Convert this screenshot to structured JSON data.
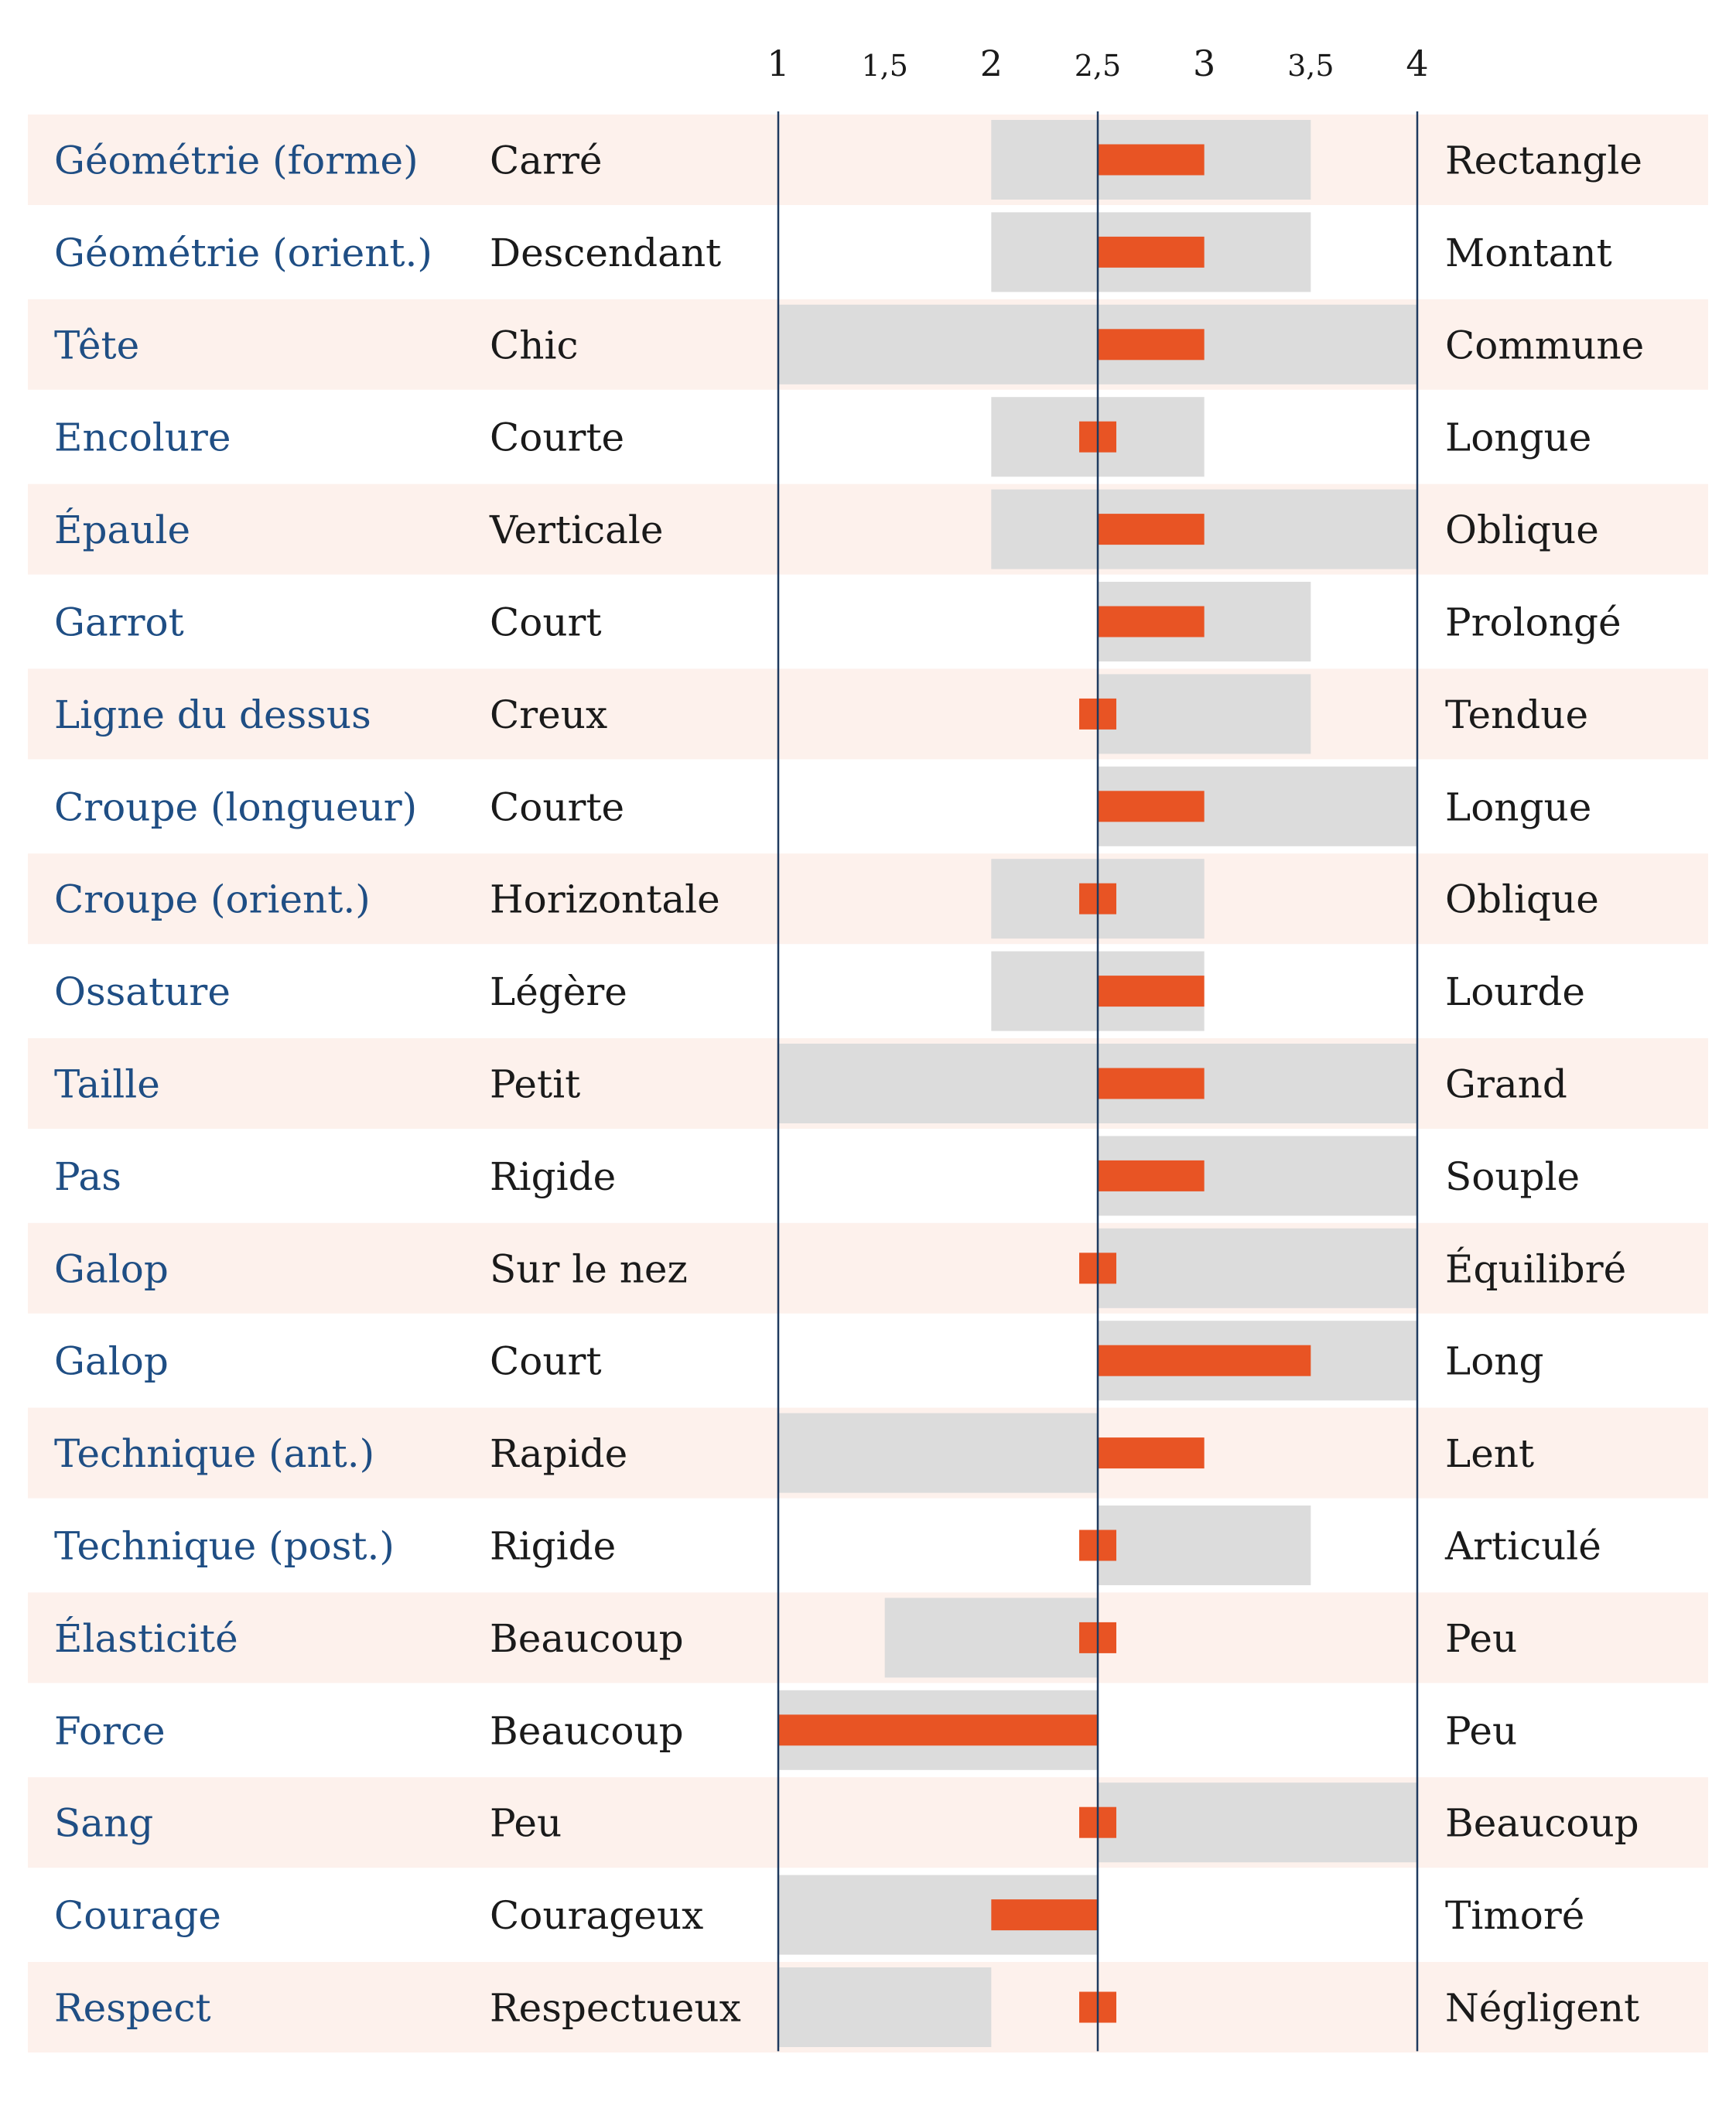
{
  "colors": {
    "row_band": "#fdf1ec",
    "range_bar": "#dcdcdc",
    "value_bar": "#e85424",
    "axis_line": "#1f3a5f",
    "trait_text": "#1f4e84",
    "pole_text": "#1a1a1a"
  },
  "chart_data": {
    "type": "bar",
    "title": "",
    "xlabel": "",
    "ylabel": "",
    "xlim": [
      1,
      4
    ],
    "center": 2.5,
    "ticks": [
      {
        "value": 1,
        "label": "1"
      },
      {
        "value": 1.5,
        "label": "1,5"
      },
      {
        "value": 2,
        "label": "2"
      },
      {
        "value": 2.5,
        "label": "2,5"
      },
      {
        "value": 3,
        "label": "3"
      },
      {
        "value": 3.5,
        "label": "3,5"
      },
      {
        "value": 4,
        "label": "4"
      }
    ],
    "rows": [
      {
        "trait": "Géométrie (forme)",
        "left": "Carré",
        "right": "Rectangle",
        "value": 3.0,
        "range": [
          2.0,
          3.5
        ]
      },
      {
        "trait": "Géométrie (orient.)",
        "left": "Descendant",
        "right": "Montant",
        "value": 3.0,
        "range": [
          2.0,
          3.5
        ]
      },
      {
        "trait": "Tête",
        "left": "Chic",
        "right": "Commune",
        "value": 3.0,
        "range": [
          1.0,
          4.0
        ]
      },
      {
        "trait": "Encolure",
        "left": "Courte",
        "right": "Longue",
        "value": 2.5,
        "range": [
          2.0,
          3.0
        ]
      },
      {
        "trait": "Épaule",
        "left": "Verticale",
        "right": "Oblique",
        "value": 3.0,
        "range": [
          2.0,
          4.0
        ]
      },
      {
        "trait": "Garrot",
        "left": "Court",
        "right": "Prolongé",
        "value": 3.0,
        "range": [
          2.5,
          3.5
        ]
      },
      {
        "trait": "Ligne du dessus",
        "left": "Creux",
        "right": "Tendue",
        "value": 2.5,
        "range": [
          2.5,
          3.5
        ]
      },
      {
        "trait": "Croupe (longueur)",
        "left": "Courte",
        "right": "Longue",
        "value": 3.0,
        "range": [
          2.5,
          4.0
        ]
      },
      {
        "trait": "Croupe (orient.)",
        "left": "Horizontale",
        "right": "Oblique",
        "value": 2.5,
        "range": [
          2.0,
          3.0
        ]
      },
      {
        "trait": "Ossature",
        "left": "Légère",
        "right": "Lourde",
        "value": 3.0,
        "range": [
          2.0,
          3.0
        ]
      },
      {
        "trait": "Taille",
        "left": "Petit",
        "right": "Grand",
        "value": 3.0,
        "range": [
          1.0,
          4.0
        ]
      },
      {
        "trait": "Pas",
        "left": "Rigide",
        "right": "Souple",
        "value": 3.0,
        "range": [
          2.5,
          4.0
        ]
      },
      {
        "trait": "Galop",
        "left": "Sur le nez",
        "right": "Équilibré",
        "value": 2.5,
        "range": [
          2.5,
          4.0
        ]
      },
      {
        "trait": "Galop",
        "left": "Court",
        "right": "Long",
        "value": 3.5,
        "range": [
          2.5,
          4.0
        ]
      },
      {
        "trait": "Technique (ant.)",
        "left": "Rapide",
        "right": "Lent",
        "value": 3.0,
        "range": [
          1.0,
          2.5
        ]
      },
      {
        "trait": "Technique (post.)",
        "left": "Rigide",
        "right": "Articulé",
        "value": 2.5,
        "range": [
          2.5,
          3.5
        ]
      },
      {
        "trait": "Élasticité",
        "left": "Beaucoup",
        "right": "Peu",
        "value": 2.5,
        "range": [
          1.5,
          2.5
        ]
      },
      {
        "trait": "Force",
        "left": "Beaucoup",
        "right": "Peu",
        "value": 1.0,
        "range": [
          1.0,
          2.5
        ]
      },
      {
        "trait": "Sang",
        "left": "Peu",
        "right": "Beaucoup",
        "value": 2.5,
        "range": [
          2.5,
          4.0
        ]
      },
      {
        "trait": "Courage",
        "left": "Courageux",
        "right": "Timoré",
        "value": 2.0,
        "range": [
          1.0,
          2.5
        ]
      },
      {
        "trait": "Respect",
        "left": "Respectueux",
        "right": "Négligent",
        "value": 2.5,
        "range": [
          1.0,
          2.0
        ]
      }
    ]
  }
}
